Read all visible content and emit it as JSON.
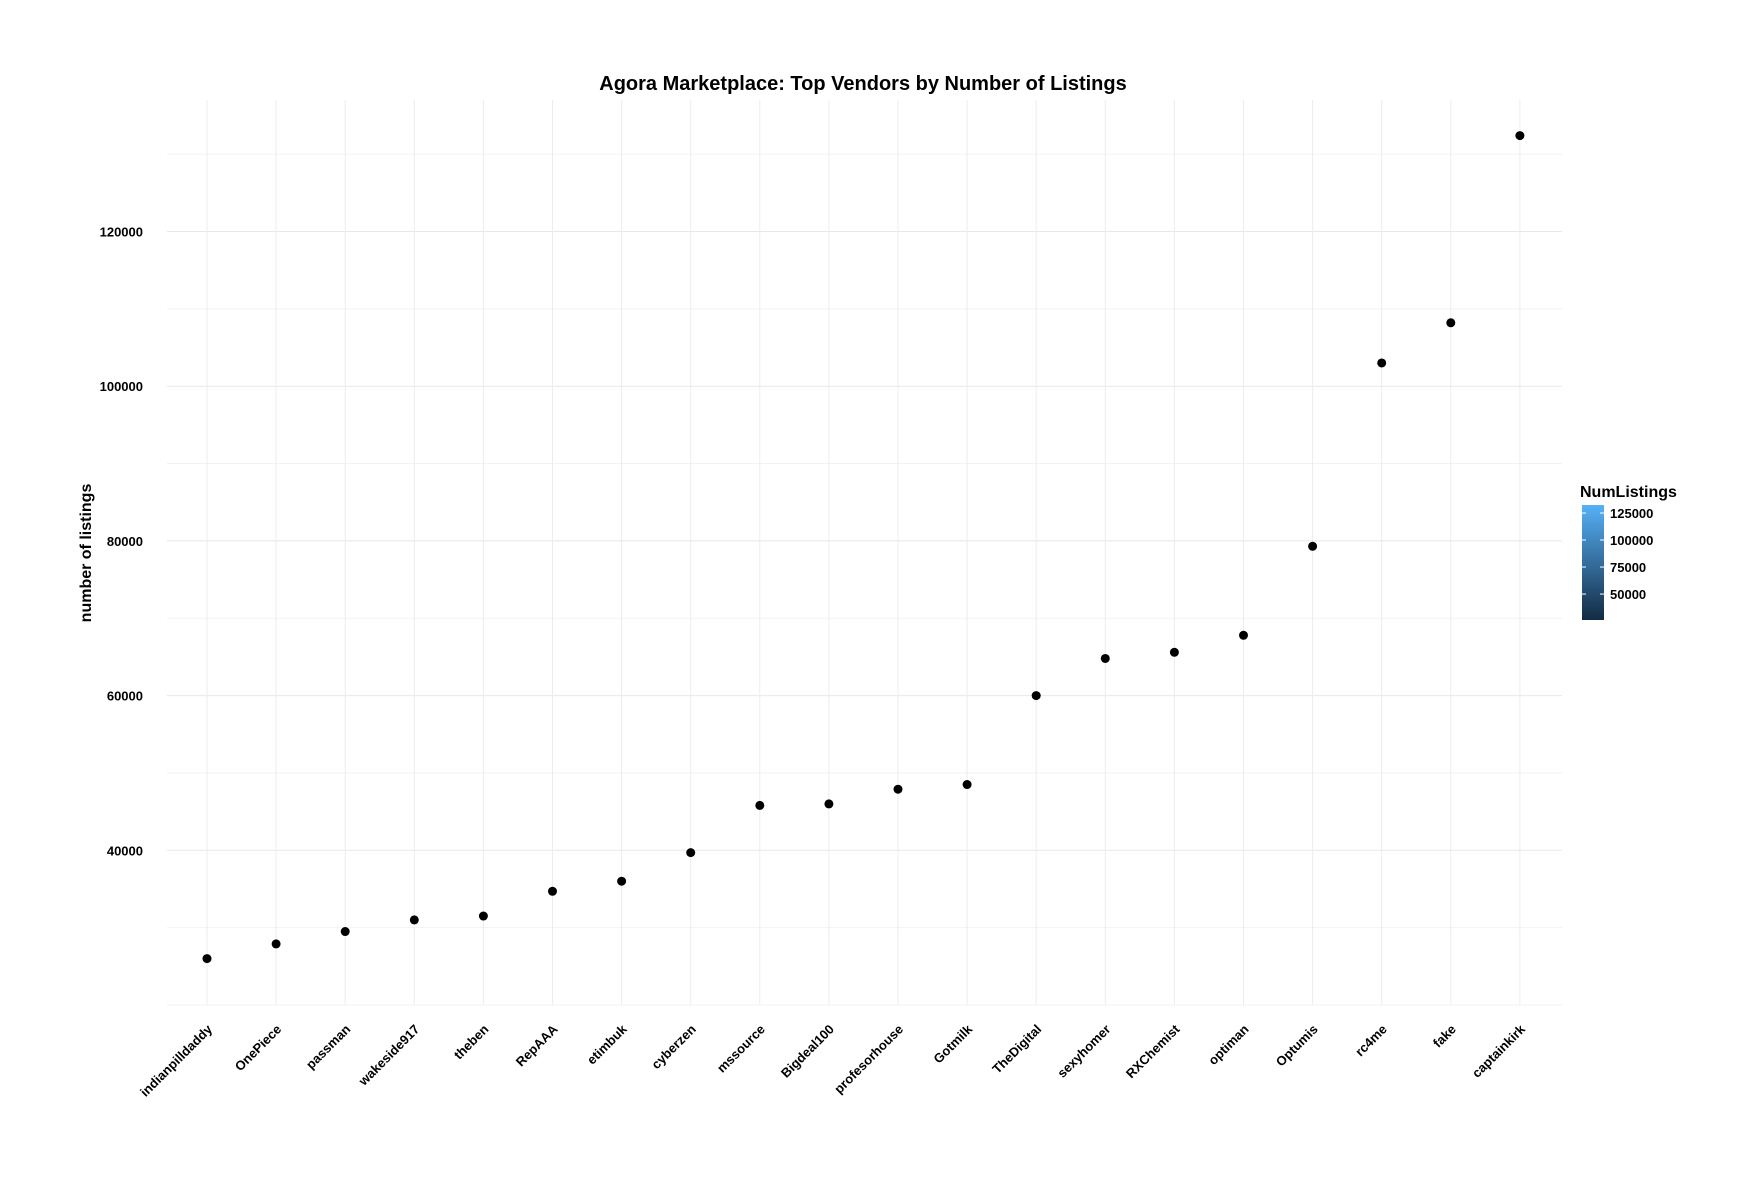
{
  "chart_data": {
    "type": "scatter",
    "title": "Agora Marketplace: Top Vendors by Number of Listings",
    "xlabel": "",
    "ylabel": "number of listings",
    "categories": [
      "indianpilldaddy",
      "OnePiece",
      "passman",
      "wakeside917",
      "theben",
      "RepAAA",
      "etimbuk",
      "cyberzen",
      "mssource",
      "Bigdeal100",
      "profesorhouse",
      "Gotmilk",
      "TheDigital",
      "sexyhomer",
      "RXChemist",
      "optiman",
      "Optumis",
      "rc4me",
      "fake",
      "captainkirk"
    ],
    "values": [
      26000,
      27900,
      29500,
      31000,
      31500,
      34700,
      36000,
      39700,
      45800,
      46000,
      47900,
      48500,
      60000,
      64800,
      65600,
      67800,
      79300,
      103000,
      108200,
      132400
    ],
    "ylim": [
      20000,
      137000
    ],
    "yticks": [
      40000,
      60000,
      80000,
      100000,
      120000
    ],
    "grid": true,
    "point_color": "#000000",
    "legend": {
      "title": "NumListings",
      "position": "right",
      "ticks": [
        50000,
        75000,
        100000,
        125000
      ],
      "range": [
        26000,
        132400
      ],
      "color_low": "#132B43",
      "color_high": "#56B1F7"
    }
  }
}
